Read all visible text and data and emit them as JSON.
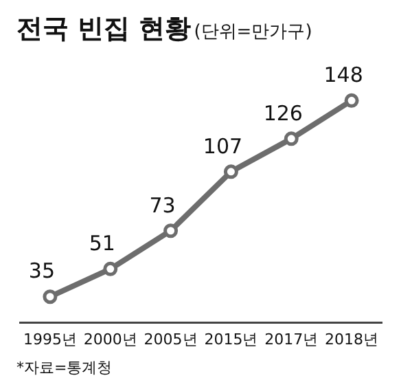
{
  "chart_data": {
    "type": "line",
    "title": "전국 빈집 현황",
    "subtitle": "(단위=만가구)",
    "categories": [
      "1995년",
      "2000년",
      "2005년",
      "2015년",
      "2017년",
      "2018년"
    ],
    "series": [
      {
        "color": "#6d6d6d",
        "values": [
          35,
          51,
          73,
          107,
          126,
          148
        ]
      }
    ],
    "marker": "circle",
    "line_style": "solid",
    "data_labels": true,
    "grid": false,
    "legend": false,
    "annotations": [
      "*자료=통계청"
    ]
  }
}
